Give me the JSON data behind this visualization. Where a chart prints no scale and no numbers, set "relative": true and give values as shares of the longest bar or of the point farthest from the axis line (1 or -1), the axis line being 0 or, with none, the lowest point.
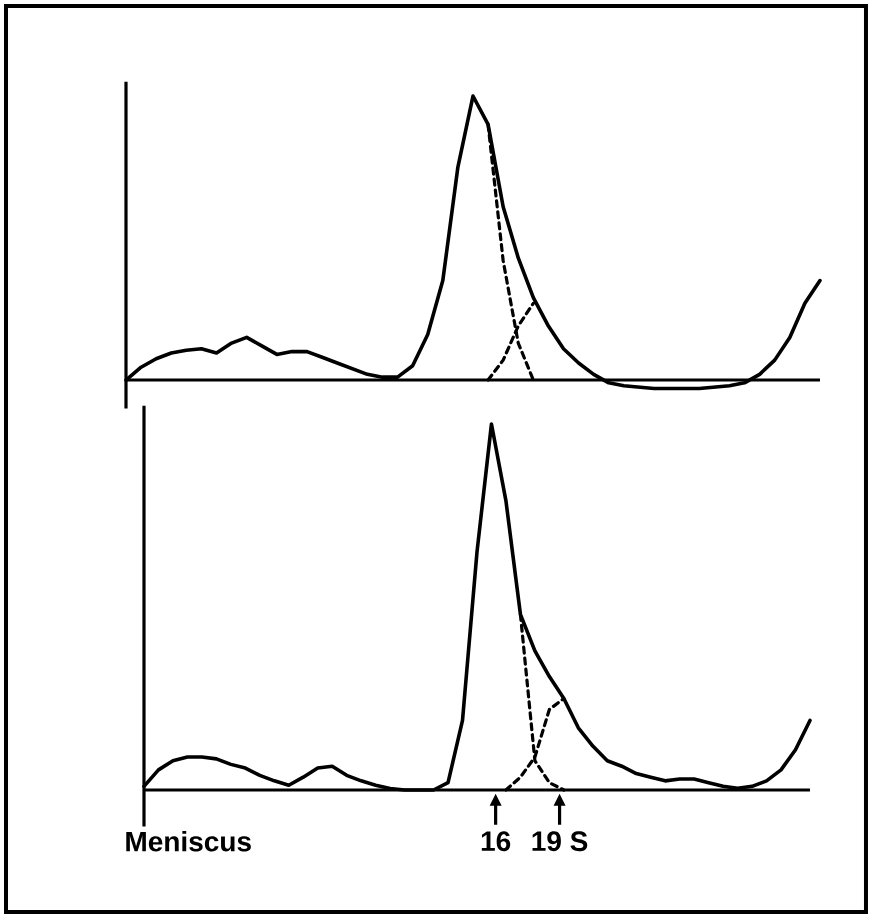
{
  "chart_data": [
    {
      "type": "line",
      "relative": true,
      "categories": [
        null,
        null,
        null,
        null,
        null,
        null,
        null,
        null,
        null,
        null,
        null,
        null,
        null,
        null,
        null,
        null,
        null,
        null,
        null,
        null,
        null,
        null,
        null,
        null,
        null,
        null,
        null,
        null,
        null,
        null,
        null,
        null,
        null,
        null,
        null,
        null,
        null,
        null,
        null,
        null,
        null,
        null,
        null,
        null,
        null,
        null,
        null
      ],
      "series": [
        {
          "color": "#000000",
          "line_style": "solid",
          "values": [
            0,
            0.045,
            0.075,
            0.095,
            0.105,
            0.11,
            0.095,
            0.13,
            0.15,
            0.12,
            0.09,
            0.1,
            0.1,
            0.08,
            0.06,
            0.04,
            0.02,
            0.01,
            0.01,
            0.05,
            0.16,
            0.35,
            0.75,
            1.0,
            0.9,
            0.61,
            0.43,
            0.29,
            0.19,
            0.11,
            0.06,
            0.02,
            -0.01,
            -0.02,
            -0.025,
            -0.03,
            -0.03,
            -0.03,
            -0.03,
            -0.025,
            -0.02,
            -0.01,
            0.02,
            0.07,
            0.15,
            0.27,
            0.35
          ]
        },
        {
          "color": "#000000",
          "line_style": "dashed",
          "values": [
            null,
            null,
            null,
            null,
            null,
            null,
            null,
            null,
            null,
            null,
            null,
            null,
            null,
            null,
            null,
            null,
            null,
            null,
            null,
            null,
            null,
            null,
            null,
            null,
            0.9,
            0.42,
            0.13,
            0,
            null,
            null,
            null,
            null,
            null,
            null,
            null,
            null,
            null,
            null,
            null,
            null,
            null,
            null,
            null,
            null,
            null,
            null,
            null
          ]
        },
        {
          "color": "#000000",
          "line_style": "dashed",
          "values": [
            null,
            null,
            null,
            null,
            null,
            null,
            null,
            null,
            null,
            null,
            null,
            null,
            null,
            null,
            null,
            null,
            null,
            null,
            null,
            null,
            null,
            null,
            null,
            null,
            0,
            0.07,
            0.19,
            0.27,
            null,
            null,
            null,
            null,
            null,
            null,
            null,
            null,
            null,
            null,
            null,
            null,
            null,
            null,
            null,
            null,
            null,
            null,
            null
          ]
        }
      ]
    },
    {
      "type": "line",
      "relative": true,
      "categories": [
        null,
        null,
        null,
        null,
        null,
        null,
        null,
        null,
        null,
        null,
        null,
        null,
        null,
        null,
        null,
        null,
        null,
        null,
        null,
        null,
        null,
        null,
        null,
        null,
        null,
        null,
        null,
        null,
        null,
        null,
        null,
        null,
        null,
        null,
        null,
        null,
        null,
        null,
        null,
        null,
        null,
        null,
        null,
        null,
        null,
        null,
        null
      ],
      "annotations": [
        "Meniscus",
        "16",
        "19 S"
      ],
      "series": [
        {
          "color": "#000000",
          "line_style": "solid",
          "values": [
            0.01,
            0.055,
            0.08,
            0.09,
            0.09,
            0.085,
            0.07,
            0.06,
            0.04,
            0.025,
            0.013,
            0.035,
            0.06,
            0.065,
            0.04,
            0.025,
            0.013,
            0.004,
            0,
            0,
            0,
            0.02,
            0.19,
            0.65,
            1.0,
            0.79,
            0.48,
            0.38,
            0.31,
            0.25,
            0.17,
            0.12,
            0.08,
            0.065,
            0.045,
            0.035,
            0.025,
            0.03,
            0.03,
            0.02,
            0.01,
            0.005,
            0.01,
            0.025,
            0.055,
            0.11,
            0.19
          ]
        },
        {
          "color": "#000000",
          "line_style": "dashed",
          "values": [
            null,
            null,
            null,
            null,
            null,
            null,
            null,
            null,
            null,
            null,
            null,
            null,
            null,
            null,
            null,
            null,
            null,
            null,
            null,
            null,
            null,
            null,
            null,
            null,
            null,
            null,
            0.48,
            0.08,
            0.02,
            0,
            null,
            null,
            null,
            null,
            null,
            null,
            null,
            null,
            null,
            null,
            null,
            null,
            null,
            null,
            null,
            null,
            null
          ]
        },
        {
          "color": "#000000",
          "line_style": "dashed",
          "values": [
            null,
            null,
            null,
            null,
            null,
            null,
            null,
            null,
            null,
            null,
            null,
            null,
            null,
            null,
            null,
            null,
            null,
            null,
            null,
            null,
            null,
            null,
            null,
            null,
            null,
            0,
            0.035,
            0.09,
            0.22,
            0.25,
            null,
            null,
            null,
            null,
            null,
            null,
            null,
            null,
            null,
            null,
            null,
            null,
            null,
            null,
            null,
            null,
            null
          ]
        }
      ]
    }
  ]
}
